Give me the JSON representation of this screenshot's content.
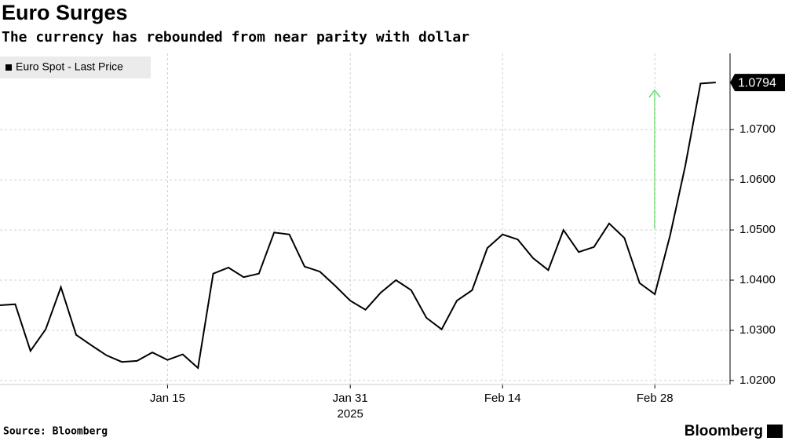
{
  "chart_data": {
    "type": "line",
    "title": "Euro Surges",
    "subtitle": "The currency has rebounded from near parity with dollar",
    "source": "Source: Bloomberg",
    "brand": "Bloomberg",
    "xlabel": "2025",
    "categories": [
      null,
      null,
      null,
      null,
      null,
      null,
      null,
      null,
      null,
      null,
      null,
      "Jan 15",
      null,
      null,
      null,
      null,
      null,
      null,
      null,
      null,
      null,
      null,
      null,
      "Jan 31",
      null,
      null,
      null,
      null,
      null,
      null,
      null,
      null,
      null,
      "Feb 14",
      null,
      null,
      null,
      null,
      null,
      null,
      null,
      null,
      null,
      "Feb 28",
      null,
      null,
      null,
      null
    ],
    "series": [
      {
        "name": "Euro Spot - Last Price",
        "color": "#000000",
        "values": [
          1.035,
          1.0352,
          1.0259,
          1.0302,
          1.0386,
          1.0291,
          1.027,
          1.025,
          1.0237,
          1.0239,
          1.0256,
          1.0241,
          1.0252,
          1.0225,
          1.0413,
          1.0425,
          1.0406,
          1.0413,
          1.0495,
          1.0491,
          1.0427,
          1.0417,
          1.0389,
          1.0359,
          1.0341,
          1.0375,
          1.04,
          1.038,
          1.0325,
          1.0302,
          1.0359,
          1.038,
          1.0464,
          1.0491,
          1.0481,
          1.0444,
          1.042,
          1.05,
          1.0456,
          1.0466,
          1.0513,
          1.0484,
          1.0394,
          1.0372,
          1.0489,
          1.0628,
          1.0792,
          1.0794
        ],
        "value_labels": [
          null,
          null,
          null,
          null,
          null,
          null,
          null,
          null,
          null,
          null,
          null,
          null,
          null,
          null,
          null,
          null,
          null,
          null,
          null,
          null,
          null,
          null,
          null,
          null,
          null,
          null,
          null,
          null,
          null,
          null,
          null,
          null,
          null,
          null,
          null,
          null,
          null,
          null,
          null,
          null,
          null,
          null,
          null,
          null,
          null,
          null,
          null,
          "1.0794"
        ]
      }
    ],
    "ylim": [
      1.0192,
      1.0852
    ],
    "yticks": [
      {
        "value": 1.02,
        "label": "1.0200"
      },
      {
        "value": 1.03,
        "label": "1.0300"
      },
      {
        "value": 1.04,
        "label": "1.0400"
      },
      {
        "value": 1.05,
        "label": "1.0500"
      },
      {
        "value": 1.06,
        "label": "1.0600"
      },
      {
        "value": 1.07,
        "label": "1.0700"
      }
    ],
    "grid": true
  }
}
